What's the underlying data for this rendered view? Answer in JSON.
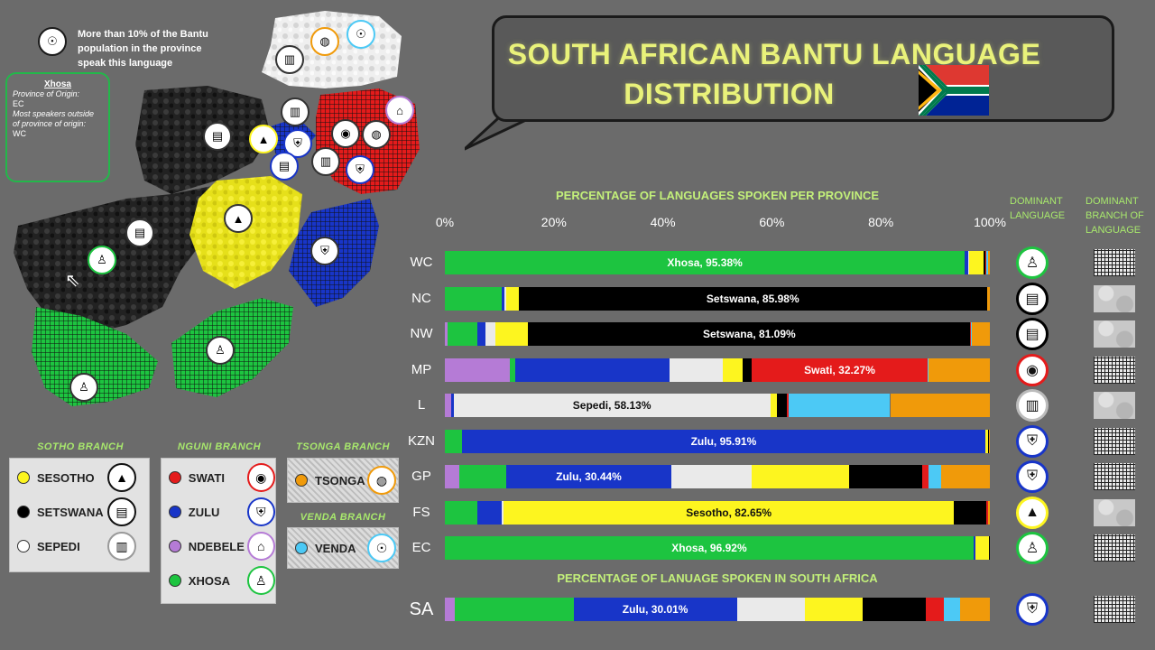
{
  "title": {
    "line1": "SOUTH AFRICAN BANTU LANGUAGE",
    "line2": "DISTRIBUTION"
  },
  "map_legend": {
    "note": "More than 10% of the Bantu population  in the province speak this language",
    "callout_lang": "Xhosa",
    "callout_lines": [
      "Province of Origin:",
      "EC",
      "Most speakers outside",
      "of province of origin:",
      "WC"
    ]
  },
  "colors": {
    "Ndebele": "#b57bd6",
    "Xhosa": "#1dc440",
    "Zulu": "#1835c8",
    "Sepedi": "#eaeaea",
    "Sesotho": "#fdf51f",
    "Setswana": "#000000",
    "Swati": "#e41b1b",
    "Venda": "#4cc9f5",
    "Tsonga": "#f09a0a"
  },
  "chart_data": [
    {
      "type": "bar",
      "orientation": "horizontal",
      "stacked": true,
      "title": "PERCENTAGE OF LANGUAGES SPOKEN PER PROVINCE",
      "xlabel": "",
      "ylabel": "",
      "xlim": [
        0,
        100
      ],
      "xticks": [
        "0%",
        "20%",
        "40%",
        "60%",
        "80%",
        "100%"
      ],
      "grid": false,
      "categories": [
        "WC",
        "NC",
        "NW",
        "MP",
        "L",
        "KZN",
        "GP",
        "FS",
        "EC"
      ],
      "series": [
        {
          "name": "Ndebele",
          "values": [
            0,
            0,
            0.5,
            12,
            1.2,
            0,
            2.7,
            0,
            0
          ]
        },
        {
          "name": "Xhosa",
          "values": [
            95.38,
            10.5,
            5.5,
            1,
            0,
            3.2,
            8.5,
            6,
            96.92
          ]
        },
        {
          "name": "Zulu",
          "values": [
            0.6,
            0.5,
            1.5,
            28.3,
            0.4,
            95.91,
            30.44,
            4.4,
            0.3
          ]
        },
        {
          "name": "Sepedi",
          "values": [
            0.2,
            0.2,
            1.7,
            9.9,
            58.13,
            0.1,
            14.7,
            0.4,
            0
          ]
        },
        {
          "name": "Sesotho",
          "values": [
            2.6,
            2.3,
            6.1,
            3.6,
            1.2,
            0.4,
            17.8,
            82.65,
            2.6
          ]
        },
        {
          "name": "Setswana",
          "values": [
            0.4,
            85.98,
            81.09,
            1.7,
            1.8,
            0.2,
            13.4,
            6,
            0.1
          ]
        },
        {
          "name": "Swati",
          "values": [
            0.2,
            0,
            0.2,
            32.27,
            0.3,
            0.1,
            1.2,
            0.2,
            0
          ]
        },
        {
          "name": "Venda",
          "values": [
            0.2,
            0,
            0.1,
            0.2,
            18.7,
            0,
            2.4,
            0,
            0
          ]
        },
        {
          "name": "Tsonga",
          "values": [
            0.4,
            0.5,
            3.3,
            11.3,
            18.3,
            0.1,
            8.9,
            0.4,
            0
          ]
        }
      ],
      "labels": [
        "Xhosa, 95.38%",
        "Setswana, 85.98%",
        "Setswana, 81.09%",
        "Swati, 32.27%",
        "Sepedi, 58.13%",
        "Zulu, 95.91%",
        "Zulu, 30.44%",
        "Sesotho, 82.65%",
        "Xhosa, 96.92%"
      ],
      "label_series": [
        "Xhosa",
        "Setswana",
        "Setswana",
        "Swati",
        "Sepedi",
        "Zulu",
        "Zulu",
        "Sesotho",
        "Xhosa"
      ]
    },
    {
      "type": "bar",
      "orientation": "horizontal",
      "stacked": true,
      "title": "PERCENTAGE OF LANUAGE SPOKEN IN SOUTH AFRICA",
      "xlim": [
        0,
        100
      ],
      "categories": [
        "SA"
      ],
      "series": [
        {
          "name": "Ndebele",
          "values": [
            1.8
          ]
        },
        {
          "name": "Xhosa",
          "values": [
            21.8
          ]
        },
        {
          "name": "Zulu",
          "values": [
            30.01
          ]
        },
        {
          "name": "Sepedi",
          "values": [
            12.4
          ]
        },
        {
          "name": "Sesotho",
          "values": [
            10.6
          ]
        },
        {
          "name": "Setswana",
          "values": [
            11.7
          ]
        },
        {
          "name": "Swati",
          "values": [
            3.3
          ]
        },
        {
          "name": "Venda",
          "values": [
            3.0
          ]
        },
        {
          "name": "Tsonga",
          "values": [
            5.4
          ]
        }
      ],
      "labels": [
        "Zulu, 30.01%"
      ],
      "label_series": [
        "Zulu"
      ]
    }
  ],
  "columns": {
    "dominant_language": "DOMINANT LANGUAGE",
    "dominant_branch": "DOMINANT BRANCH OF LANGUAGE"
  },
  "dominant": [
    {
      "lang": "Xhosa",
      "branch": "Nguni"
    },
    {
      "lang": "Setswana",
      "branch": "Sotho"
    },
    {
      "lang": "Setswana",
      "branch": "Sotho"
    },
    {
      "lang": "Swati",
      "branch": "Nguni"
    },
    {
      "lang": "Sepedi",
      "branch": "Sotho"
    },
    {
      "lang": "Zulu",
      "branch": "Nguni"
    },
    {
      "lang": "Zulu",
      "branch": "Nguni"
    },
    {
      "lang": "Sesotho",
      "branch": "Sotho"
    },
    {
      "lang": "Xhosa",
      "branch": "Nguni"
    }
  ],
  "dominant_sa": {
    "lang": "Zulu",
    "branch": "Nguni"
  },
  "legend": {
    "sotho": {
      "title": "SOTHO BRANCH",
      "items": [
        "SESOTHO",
        "SETSWANA",
        "SEPEDI"
      ]
    },
    "nguni": {
      "title": "NGUNI BRANCH",
      "items": [
        "SWATI",
        "ZULU",
        "NDEBELE",
        "XHOSA"
      ]
    },
    "tsonga": {
      "title": "TSONGA BRANCH",
      "items": [
        "TSONGA"
      ]
    },
    "venda": {
      "title": "VENDA BRANCH",
      "items": [
        "VENDA"
      ]
    }
  }
}
